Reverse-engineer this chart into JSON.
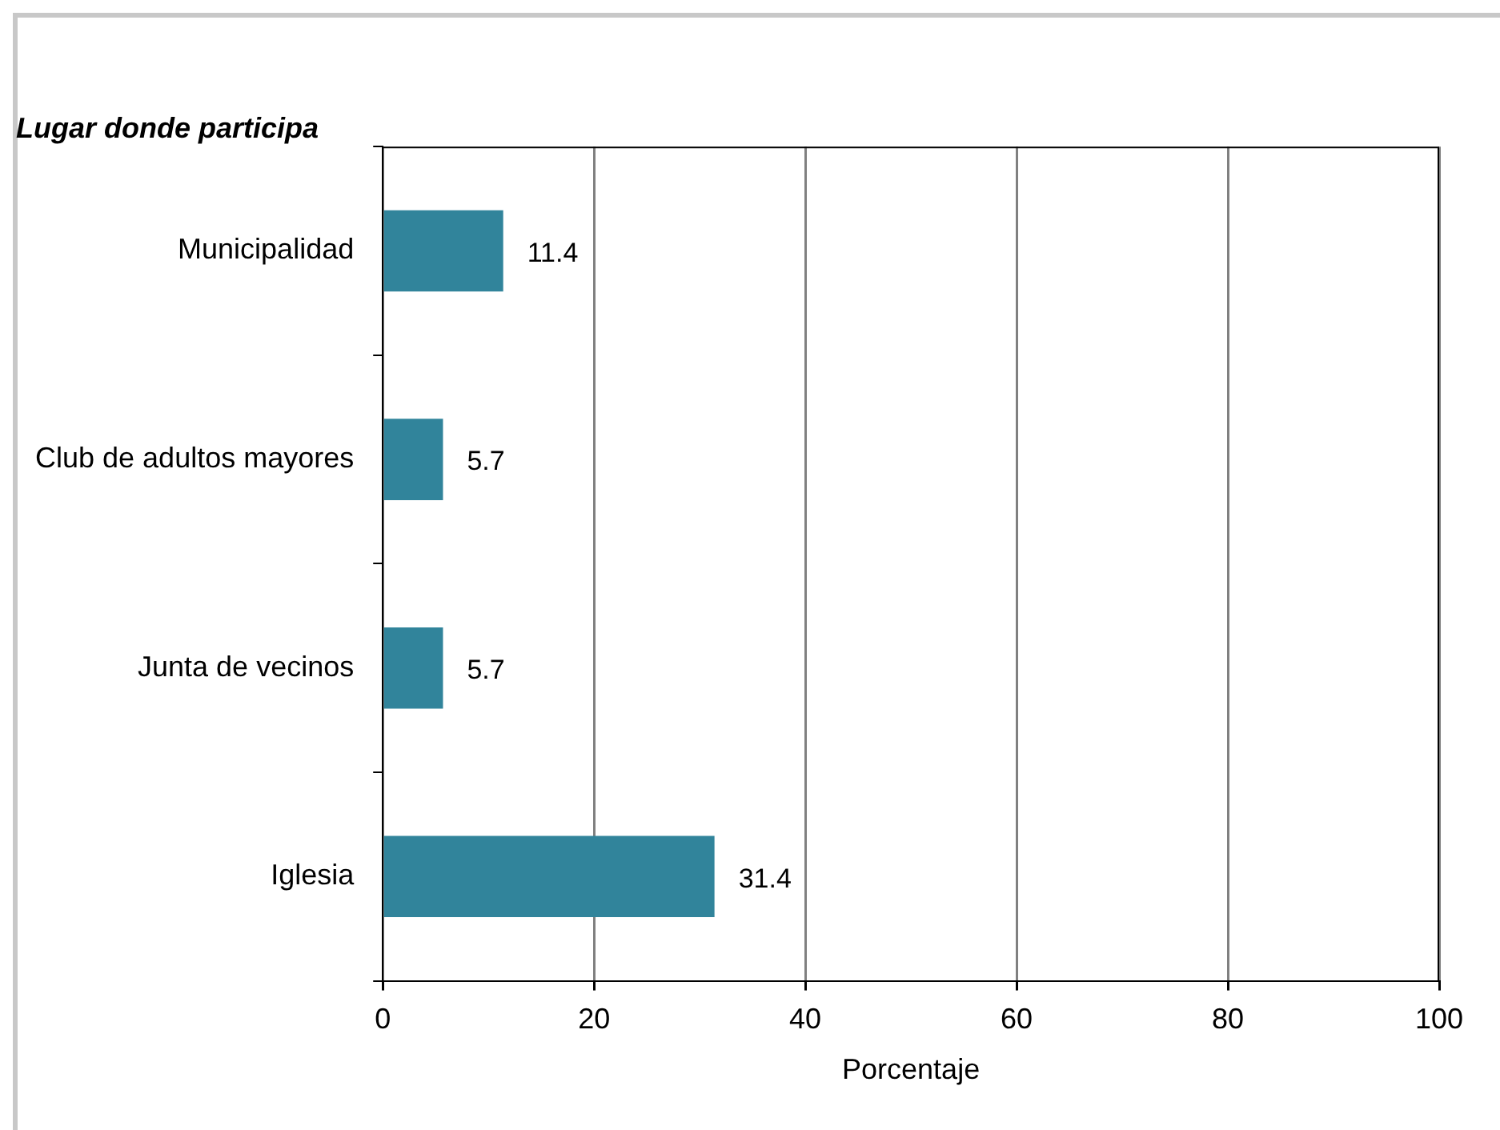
{
  "chart_data": {
    "type": "bar",
    "orientation": "horizontal",
    "title": "Lugar donde participa",
    "xlabel": "Porcentaje",
    "categories": [
      "Municipalidad",
      "Club de adultos mayores",
      "Junta de vecinos",
      "Iglesia"
    ],
    "values": [
      11.4,
      5.7,
      5.7,
      31.4
    ],
    "color": "#31849b",
    "xlim": [
      0,
      100
    ],
    "xticks": [
      0,
      20,
      40,
      60,
      80,
      100
    ],
    "grid": "x",
    "data_labels": true,
    "legend": false
  }
}
